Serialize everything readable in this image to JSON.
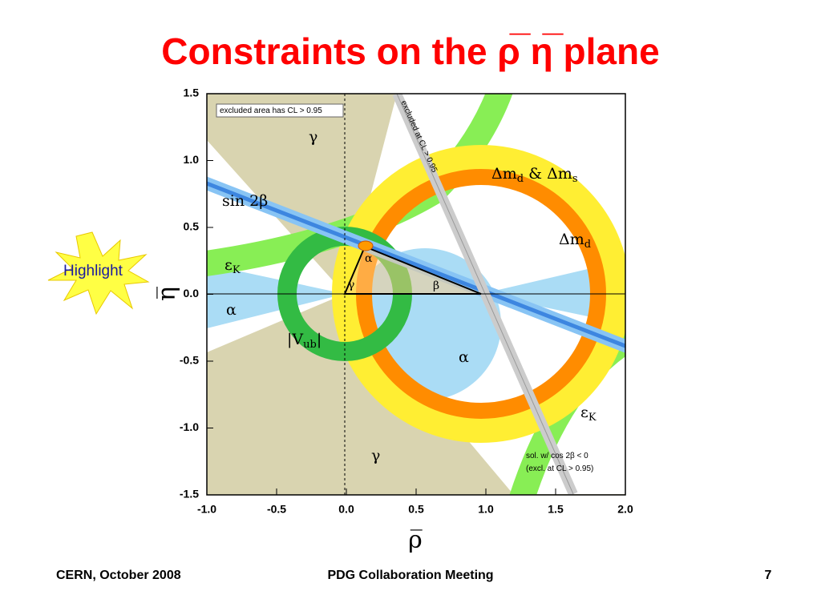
{
  "slide": {
    "title": "Constraints on the ρ̅ η̅ plane",
    "highlight": "Highlight",
    "footer": {
      "left": "CERN, October 2008",
      "center": "PDG Collaboration Meeting",
      "right": "7"
    }
  },
  "chart_data": {
    "type": "region",
    "xlabel": "ρ̅",
    "ylabel": "η̅",
    "xlim": [
      -1,
      2
    ],
    "ylim": [
      -1.5,
      1.5
    ],
    "xticks": [
      {
        "value": -1,
        "label": "-1.0"
      },
      -0.5,
      {
        "value": 0,
        "label": "0.0"
      },
      0.5,
      {
        "value": 1,
        "label": "1.0"
      },
      1.5,
      {
        "value": 2,
        "label": "2.0"
      }
    ],
    "yticks": [
      -1.5,
      {
        "value": -1,
        "label": "-1.0"
      },
      -0.5,
      {
        "value": 0,
        "label": "0.0"
      },
      0.5,
      {
        "value": 1,
        "label": "1.0"
      },
      1.5
    ],
    "annotations": [
      {
        "parts": [
          "excluded area has CL > 0.95"
        ]
      },
      {
        "parts": [
          "γ"
        ]
      },
      {
        "parts": [
          "sin 2β"
        ]
      },
      {
        "parts": [
          "ε",
          "K"
        ]
      },
      {
        "parts": [
          "α"
        ]
      },
      {
        "parts": [
          "|V",
          "ub",
          "|"
        ]
      },
      {
        "parts": [
          "Δm",
          "d",
          " & Δm",
          "s"
        ]
      },
      {
        "parts": [
          "Δm",
          "d"
        ]
      },
      {
        "parts": [
          "α"
        ]
      },
      {
        "parts": [
          "α"
        ]
      },
      {
        "parts": [
          "γ"
        ]
      },
      {
        "parts": [
          "β"
        ]
      },
      {
        "parts": [
          "ε",
          "K"
        ]
      },
      {
        "parts": [
          "γ"
        ]
      },
      {
        "parts": [
          "sol. w/ cos 2β < 0"
        ]
      },
      {
        "parts": [
          "(excl. at CL > 0.95)"
        ]
      },
      {
        "parts": [
          "excluded at CL > 0.95"
        ]
      }
    ]
  }
}
